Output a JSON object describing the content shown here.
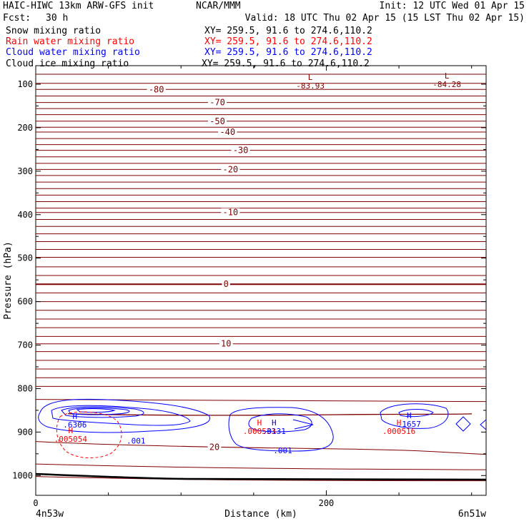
{
  "header": {
    "model": "HAIC-HIWC 13km ARW-GFS init",
    "org": "NCAR/MMM",
    "init": "Init: 12 UTC Wed 01 Apr 15",
    "fcst_label": "Fcst:",
    "fcst_value": "30 h",
    "valid": "Valid: 18 UTC Thu 02 Apr 15 (15 LST Thu 02 Apr 15)"
  },
  "legend": [
    {
      "label": "Snow mixing ratio",
      "xy": "XY= 259.5, 91.6 to 274.6,110.2",
      "color": "#000000"
    },
    {
      "label": "Rain water mixing ratio",
      "xy": "XY= 259.5, 91.6 to 274.6,110.2",
      "color": "#ff0000"
    },
    {
      "label": "Cloud water mixing ratio",
      "xy": "XY= 259.5, 91.6 to 274.6,110.2",
      "color": "#0000ff"
    },
    {
      "label": "Cloud ice mixing ratio",
      "xy": "XY= 259.5, 91.6 to 274.6,110.2",
      "color": "#000000"
    }
  ],
  "chart_data": {
    "type": "line",
    "ylabel": "Pressure (hPa)",
    "xlabel": "Distance (km)",
    "x_end_labels": [
      "4n53w",
      "6n51w"
    ],
    "xlim": [
      0,
      310
    ],
    "ylim": [
      1050,
      70
    ],
    "y_inverted": true,
    "y_ticks": [
      100,
      200,
      300,
      400,
      500,
      600,
      700,
      800,
      900,
      1000
    ],
    "x_ticks": [
      0,
      200
    ],
    "colors": {
      "temperature": "#7f0000",
      "cloud_water": "#0000ff",
      "rain_water": "#ff0000",
      "terrain": "#000000"
    },
    "temperature_labels": [
      {
        "text": "-80",
        "x": 83,
        "p": 112
      },
      {
        "text": "-70",
        "x": 125,
        "p": 142
      },
      {
        "text": "-50",
        "x": 125,
        "p": 185
      },
      {
        "text": "-40",
        "x": 132,
        "p": 210
      },
      {
        "text": "-30",
        "x": 141,
        "p": 252
      },
      {
        "text": "-20",
        "x": 134,
        "p": 296
      },
      {
        "text": "-10",
        "x": 134,
        "p": 395
      },
      {
        "text": "0",
        "x": 131,
        "p": 560
      },
      {
        "text": "10",
        "x": 131,
        "p": 697
      },
      {
        "text": "20",
        "x": 123,
        "p": 935
      }
    ],
    "extrema_labels": [
      {
        "mark": "L",
        "text": "-83.93",
        "x": 189,
        "p": 90,
        "color": "#7f0000"
      },
      {
        "mark": "L",
        "text": "-84.28",
        "x": 283,
        "p": 87,
        "color": "#7f0000"
      },
      {
        "mark": "H",
        "text": ".6306",
        "x": 27,
        "p": 870,
        "color": "#0000ff"
      },
      {
        "mark": "H",
        "text": ".005054",
        "x": 24,
        "p": 903,
        "color": "#ff0000"
      },
      {
        "mark": "H",
        "text": ".000516",
        "x": 250,
        "p": 885,
        "color": "#ff0000"
      },
      {
        "mark": "H",
        "text": ".1657",
        "x": 257,
        "p": 868,
        "color": "#0000ff"
      },
      {
        "mark": "H",
        "text": ".000533",
        "x": 154,
        "p": 885,
        "color": "#ff0000"
      },
      {
        "mark": "H",
        "text": ".0131",
        "x": 164,
        "p": 885,
        "color": "#0000ff"
      }
    ],
    "contour_labels": [
      {
        "text": ".001",
        "x": 69,
        "p": 920,
        "color": "#0000ff"
      },
      {
        "text": ".001",
        "x": 170,
        "p": 942,
        "color": "#0000ff"
      }
    ],
    "isotherm_levels_p": [
      77,
      98,
      112,
      127,
      142,
      156,
      170,
      185,
      199,
      210,
      225,
      239,
      252,
      267,
      282,
      296,
      310,
      325,
      340,
      355,
      370,
      385,
      395,
      411,
      427,
      444,
      462,
      480,
      498,
      520,
      540,
      560,
      580,
      600,
      620,
      640,
      660,
      680,
      697,
      715,
      735,
      755,
      775,
      795,
      825,
      935,
      980,
      1012
    ]
  }
}
